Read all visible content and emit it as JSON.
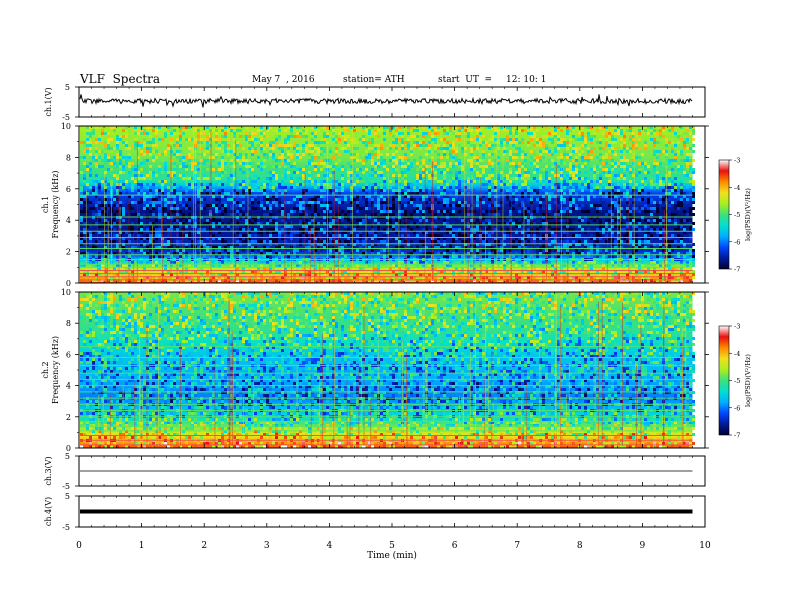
{
  "header": {
    "title": "VLF  Spectra",
    "date": "May 7  , 2016",
    "station": "station= ATH",
    "start_label": "start  UT  =",
    "start_time": "12: 10: 1"
  },
  "colors": {
    "spectrogram_scale": [
      "#000033",
      "#001a99",
      "#0047ff",
      "#00b0ff",
      "#00e0d0",
      "#3fe07a",
      "#a8f020",
      "#f0e020",
      "#ff8a00",
      "#e81010",
      "#ffffff"
    ],
    "trace": "#000000",
    "background": "#ffffff"
  },
  "chart_data": [
    {
      "type": "line",
      "name": "ch1-time-series",
      "ylabel": "ch.1(V)",
      "yticks": [
        "5",
        "-5"
      ],
      "ylim": [
        -5,
        5
      ],
      "xlim": [
        0,
        10
      ],
      "trace_end_min": 9.8,
      "level_V": 0.3
    },
    {
      "type": "heatmap",
      "name": "ch1-spectrogram",
      "ylabel": [
        "ch.1",
        "Frequency  (kHz)"
      ],
      "yticks": [
        "0",
        "2",
        "4",
        "6",
        "8",
        "10"
      ],
      "ylim_khz": [
        0,
        10
      ],
      "xlim_min": [
        0,
        10
      ],
      "data_end_min": 9.8,
      "colorbar": {
        "label": "log(PSD)(V²/Hz)",
        "ticks": [
          "-3",
          "-4",
          "-5",
          "-6",
          "-7"
        ],
        "range": [
          -7,
          -3
        ]
      },
      "profile": [
        {
          "f": 0,
          "psd": -3.6
        },
        {
          "f": 1,
          "psd": -4.6
        },
        {
          "f": 1.9,
          "psd": -6.4
        },
        {
          "f": 3,
          "psd": -6.6
        },
        {
          "f": 4.5,
          "psd": -6.7
        },
        {
          "f": 5.8,
          "psd": -6.2
        },
        {
          "f": 6.5,
          "psd": -5.2
        },
        {
          "f": 8,
          "psd": -4.8
        },
        {
          "f": 10,
          "psd": -4.6
        }
      ],
      "lines_khz": [
        0.2,
        0.4,
        0.6,
        0.8,
        1.0,
        1.2,
        1.5,
        1.8,
        2.2,
        2.5,
        2.9,
        3.3,
        3.7,
        4.2,
        5.6
      ]
    },
    {
      "type": "heatmap",
      "name": "ch2-spectrogram",
      "ylabel": [
        "ch.2",
        "Frequency  (kHz)"
      ],
      "yticks": [
        "0",
        "2",
        "4",
        "6",
        "8",
        "10"
      ],
      "ylim_khz": [
        0,
        10
      ],
      "xlim_min": [
        0,
        10
      ],
      "data_end_min": 9.8,
      "colorbar": {
        "label": "log(PSD)(V²/Hz)",
        "ticks": [
          "-3",
          "-4",
          "-5",
          "-6",
          "-7"
        ],
        "range": [
          -7,
          -3
        ]
      },
      "profile": [
        {
          "f": 0,
          "psd": -3.6
        },
        {
          "f": 1,
          "psd": -4.4
        },
        {
          "f": 2,
          "psd": -5.4
        },
        {
          "f": 3.2,
          "psd": -6.0
        },
        {
          "f": 4.5,
          "psd": -5.8
        },
        {
          "f": 6,
          "psd": -5.6
        },
        {
          "f": 7.5,
          "psd": -5.1
        },
        {
          "f": 10,
          "psd": -4.8
        }
      ],
      "lines_khz": [
        0.2,
        0.5,
        0.8,
        1.1,
        1.4,
        1.7,
        2.0,
        2.4,
        2.8,
        3.2,
        3.6,
        4.0,
        4.4,
        4.8,
        5.3,
        5.8,
        6.5
      ]
    },
    {
      "type": "line",
      "name": "ch3-time-series",
      "ylabel": "ch.3(V)",
      "yticks": [
        "5",
        "-5"
      ],
      "ylim": [
        -5,
        5
      ],
      "xlim": [
        0,
        10
      ],
      "trace_end_min": 9.8,
      "level_V": 0
    },
    {
      "type": "line",
      "name": "ch4-time-series",
      "ylabel": "ch.4(V)",
      "yticks": [
        "5",
        "-5"
      ],
      "ylim": [
        -5,
        5
      ],
      "xlim": [
        0,
        10
      ],
      "trace_end_min": 9.8,
      "level_V": 0
    }
  ],
  "xaxis": {
    "label": "Time  (min)",
    "ticks": [
      "0",
      "1",
      "2",
      "3",
      "4",
      "5",
      "6",
      "7",
      "8",
      "9",
      "10"
    ]
  }
}
